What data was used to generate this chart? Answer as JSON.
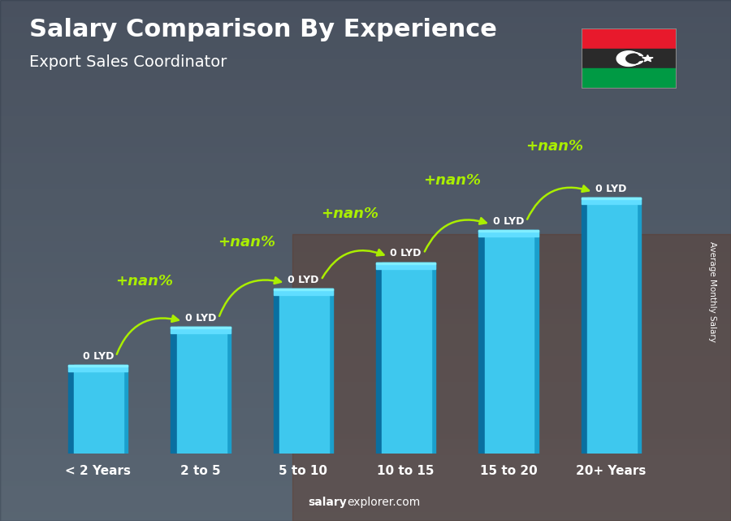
{
  "title": "Salary Comparison By Experience",
  "subtitle": "Export Sales Coordinator",
  "categories": [
    "< 2 Years",
    "2 to 5",
    "5 to 10",
    "10 to 15",
    "15 to 20",
    "20+ Years"
  ],
  "bar_heights": [
    0.3,
    0.43,
    0.56,
    0.65,
    0.76,
    0.87
  ],
  "bar_color_left": "#0a6fa0",
  "bar_color_center": "#3ec8ee",
  "bar_color_right": "#1a9fcc",
  "bar_color_top": "#60ddff",
  "value_labels": [
    "0 LYD",
    "0 LYD",
    "0 LYD",
    "0 LYD",
    "0 LYD",
    "0 LYD"
  ],
  "pct_labels": [
    "+nan%",
    "+nan%",
    "+nan%",
    "+nan%",
    "+nan%"
  ],
  "title_color": "#ffffff",
  "label_color": "#ffffff",
  "lyd_color": "#ffffff",
  "pct_color": "#aaee00",
  "arrow_color": "#aaee00",
  "bg_color_top": "#6a8ea0",
  "bg_color_bottom": "#3a5060",
  "ylabel": "Average Monthly Salary",
  "footer_salary": "salary",
  "footer_rest": "explorer.com",
  "flag_red": "#e8192c",
  "flag_black": "#2a2a2a",
  "flag_green": "#009a44",
  "ylim": [
    0,
    1.1
  ],
  "bar_width": 0.58,
  "title_fontsize": 22,
  "subtitle_fontsize": 14,
  "tick_fontsize": 11,
  "pct_fontsize": 13
}
